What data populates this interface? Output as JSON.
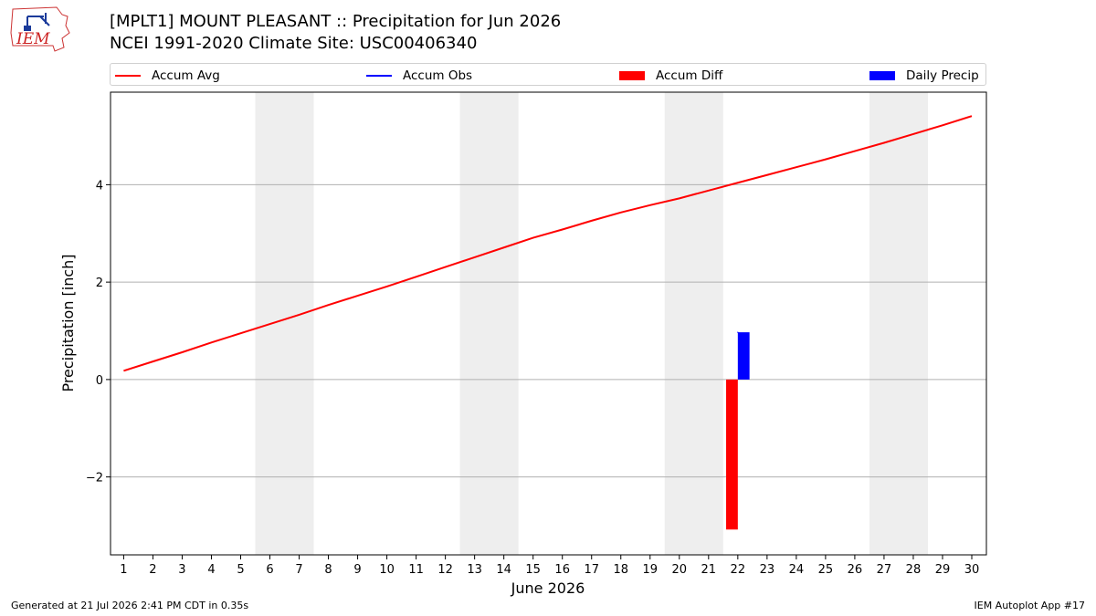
{
  "header": {
    "title_line1": "[MPLT1] MOUNT PLEASANT :: Precipitation for Jun 2026",
    "title_line2": "NCEI 1991-2020 Climate Site: USC00406340",
    "logo_text": "IEM"
  },
  "footer": {
    "generated": "Generated at 21 Jul 2026 2:41 PM CDT in 0.35s",
    "app": "IEM Autoplot App #17"
  },
  "colors": {
    "accum_avg": "#ff0000",
    "accum_obs": "#0000ff",
    "accum_diff": "#ff0000",
    "daily_precip": "#0000ff",
    "weekend_shade": "#eeeeee",
    "grid": "#b0b0b0"
  },
  "chart_data": {
    "type": "line",
    "xlabel": "June 2026",
    "ylabel": "Precipitation [inch]",
    "x_days": [
      1,
      2,
      3,
      4,
      5,
      6,
      7,
      8,
      9,
      10,
      11,
      12,
      13,
      14,
      15,
      16,
      17,
      18,
      19,
      20,
      21,
      22,
      23,
      24,
      25,
      26,
      27,
      28,
      29,
      30
    ],
    "xlim": [
      0.55,
      30.5
    ],
    "ylim": [
      -3.6,
      5.9
    ],
    "yticks": [
      -2,
      0,
      2,
      4
    ],
    "ytick_labels": [
      "−2",
      "0",
      "2",
      "4"
    ],
    "grid": "horizontal",
    "legend_position": "top",
    "weekend_shading": [
      [
        6,
        7
      ],
      [
        13,
        14
      ],
      [
        20,
        21
      ],
      [
        27,
        28
      ]
    ],
    "legend": [
      "Accum Avg",
      "Accum Obs",
      "Accum Diff",
      "Daily Precip"
    ],
    "series": [
      {
        "name": "Accum Avg",
        "type": "line",
        "x": [
          1,
          2,
          3,
          4,
          5,
          6,
          7,
          8,
          9,
          10,
          11,
          12,
          13,
          14,
          15,
          16,
          17,
          18,
          19,
          20,
          21,
          22,
          23,
          24,
          25,
          26,
          27,
          28,
          29,
          30
        ],
        "values": [
          0.18,
          0.37,
          0.56,
          0.76,
          0.95,
          1.14,
          1.33,
          1.53,
          1.72,
          1.91,
          2.11,
          2.31,
          2.51,
          2.71,
          2.91,
          3.08,
          3.26,
          3.43,
          3.58,
          3.72,
          3.88,
          4.04,
          4.2,
          4.36,
          4.52,
          4.69,
          4.86,
          5.04,
          5.22,
          5.41
        ]
      },
      {
        "name": "Accum Obs",
        "type": "line",
        "x": [
          22
        ],
        "values": [
          0.97
        ]
      },
      {
        "name": "Accum Diff",
        "type": "bar",
        "x": [
          22
        ],
        "values": [
          -3.08
        ]
      },
      {
        "name": "Daily Precip",
        "type": "bar",
        "x": [
          22
        ],
        "values": [
          0.97
        ]
      }
    ]
  }
}
